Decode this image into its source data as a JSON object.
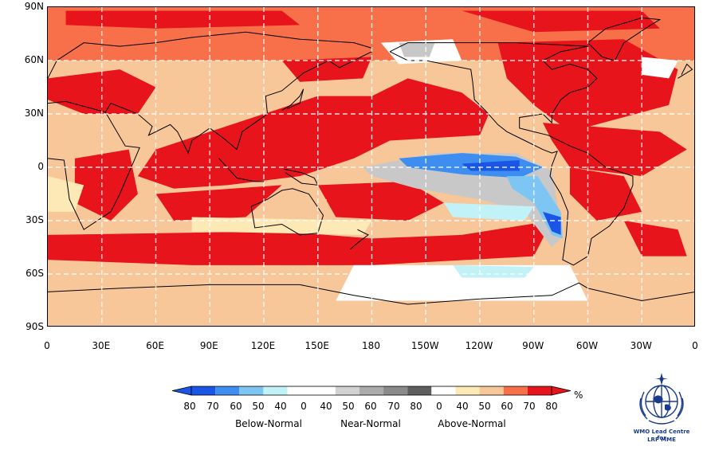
{
  "map": {
    "lat_labels": [
      "90N",
      "60N",
      "30N",
      "0",
      "30S",
      "60S",
      "90S"
    ],
    "lon_labels": [
      "0",
      "30E",
      "60E",
      "90E",
      "120E",
      "150E",
      "180",
      "150W",
      "120W",
      "90W",
      "60W",
      "30W",
      "0"
    ],
    "colors": {
      "above_80": "#e8141b",
      "above_70": "#f7704a",
      "above_60": "#f7c79a",
      "above_50": "#fde9b5",
      "above_40": "#ffffff",
      "near": "#c8c8c8",
      "near_dark": "#9b9b9b",
      "below_40": "#ffffff",
      "below_50": "#c0f2f8",
      "below_60": "#7dc5f3",
      "below_70": "#3d8ef0",
      "below_80": "#1a55e6"
    }
  },
  "colorbar": {
    "unit": "%",
    "numbers": [
      "80",
      "70",
      "60",
      "50",
      "40",
      "0",
      "40",
      "50",
      "60",
      "70",
      "80",
      "0",
      "40",
      "50",
      "60",
      "70",
      "80"
    ],
    "categories": [
      "Below-Normal",
      "Near-Normal",
      "Above-Normal"
    ],
    "colors": [
      "#1a55e6",
      "#3d8ef0",
      "#7dc5f3",
      "#c0f2f8",
      "#ffffff",
      "#ffffff",
      "#d2d2d2",
      "#ababab",
      "#8a8a8a",
      "#5e5e5e",
      "#ffffff",
      "#fde9b5",
      "#f7c79a",
      "#f7704a",
      "#e8141b"
    ]
  },
  "logo": {
    "line1": "WMO Lead Centre for",
    "line2": "LRF MME"
  }
}
